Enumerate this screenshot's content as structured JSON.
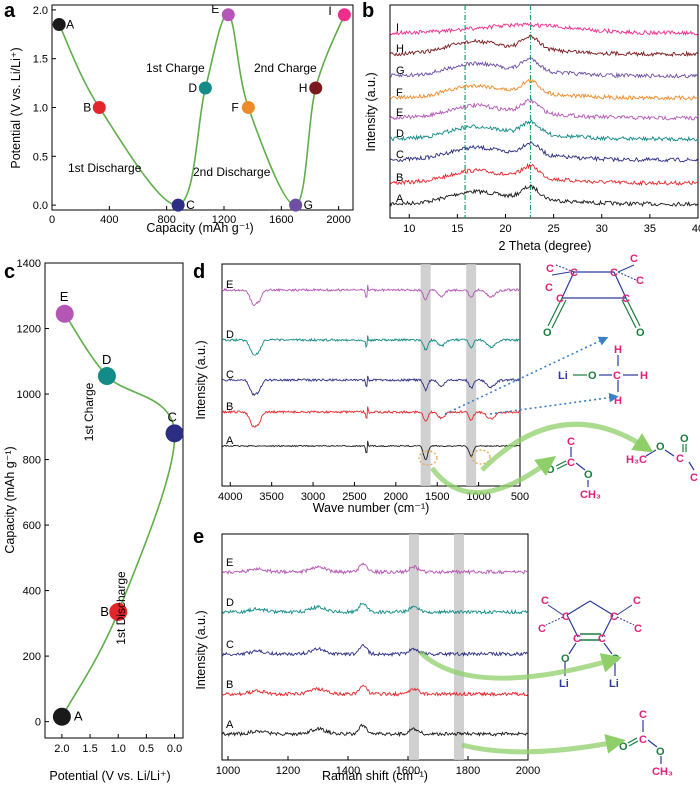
{
  "colors": {
    "A": "#1a1a1a",
    "B": "#e3262b",
    "C": "#2b2e83",
    "D": "#138b87",
    "E": "#b456b6",
    "F": "#ef8a2a",
    "G": "#6d4fa3",
    "H": "#7a1a1c",
    "I": "#ee2d8d",
    "curve": "#5fae4a",
    "chem": "#e0217a",
    "chem_bond": "#1b7d3e",
    "atom_blue": "#2a3a9a",
    "shade": "#c8c8c8",
    "dash": "#1d9a63",
    "dotted_arrow": "#3b7fc6",
    "green_arrow": "#8fcf6a"
  },
  "chart_data": [
    {
      "panel": "a",
      "type": "line",
      "xlabel": "Capacity (mAh g⁻¹)",
      "ylabel": "Potential (V vs. Li/Li⁺)",
      "xlim": [
        0,
        2100
      ],
      "ylim": [
        -0.05,
        2.05
      ],
      "xticks": [
        "0",
        "400",
        "800",
        "1200",
        "1600",
        "2000"
      ],
      "yticks": [
        "0.0",
        "0.5",
        "1.0",
        "1.5",
        "2.0"
      ],
      "points": [
        {
          "label": "A",
          "x": 50,
          "y": 1.85
        },
        {
          "label": "B",
          "x": 330,
          "y": 1.0
        },
        {
          "label": "C",
          "x": 880,
          "y": 0.0
        },
        {
          "label": "D",
          "x": 1070,
          "y": 1.2
        },
        {
          "label": "E",
          "x": 1230,
          "y": 1.95
        },
        {
          "label": "F",
          "x": 1370,
          "y": 1.0
        },
        {
          "label": "G",
          "x": 1700,
          "y": 0.0
        },
        {
          "label": "H",
          "x": 1840,
          "y": 1.2
        },
        {
          "label": "I",
          "x": 2040,
          "y": 1.95
        }
      ],
      "annotations": [
        "1st Discharge",
        "1st Charge",
        "2nd Discharge",
        "2nd Charge"
      ]
    },
    {
      "panel": "b",
      "type": "line",
      "xlabel": "2 Theta (degree)",
      "ylabel": "Intensity (a.u.)",
      "xlim": [
        8,
        40
      ],
      "xticks": [
        "10",
        "15",
        "20",
        "25",
        "30",
        "35",
        "40"
      ],
      "series": [
        "A",
        "B",
        "C",
        "D",
        "E",
        "F",
        "G",
        "H",
        "I"
      ],
      "reference_lines": [
        15.8,
        22.6
      ]
    },
    {
      "panel": "c",
      "type": "line",
      "xlabel": "Potential (V vs. Li/Li⁺)",
      "ylabel": "Capacity (mAh g⁻¹)",
      "xlim": [
        2.3,
        -0.15
      ],
      "ylim": [
        -50,
        1400
      ],
      "xticks": [
        "2.0",
        "1.5",
        "1.0",
        "0.5",
        "0.0"
      ],
      "yticks": [
        "0",
        "200",
        "400",
        "600",
        "800",
        "1000",
        "1200",
        "1400"
      ],
      "points": [
        {
          "label": "A",
          "x": 2.0,
          "y": 15
        },
        {
          "label": "B",
          "x": 1.0,
          "y": 335
        },
        {
          "label": "C",
          "x": 0.0,
          "y": 880
        },
        {
          "label": "D",
          "x": 1.2,
          "y": 1055
        },
        {
          "label": "E",
          "x": 1.95,
          "y": 1245
        }
      ],
      "annotations": [
        "1st Discharge",
        "1st Charge"
      ]
    },
    {
      "panel": "d",
      "type": "line",
      "xlabel": "Wave number (cm⁻¹)",
      "ylabel": "Intensity (a.u.)",
      "xlim": [
        4100,
        500
      ],
      "xticks": [
        "4000",
        "3500",
        "3000",
        "2500",
        "2000",
        "1500",
        "1000",
        "500"
      ],
      "series": [
        "A",
        "B",
        "C",
        "D",
        "E"
      ],
      "shaded_bands": [
        1640,
        1090
      ]
    },
    {
      "panel": "e",
      "type": "line",
      "xlabel": "Raman shift (cm⁻¹)",
      "ylabel": "Intensity (a.u.)",
      "xlim": [
        980,
        2000
      ],
      "xticks": [
        "1000",
        "1200",
        "1400",
        "1600",
        "1800",
        "2000"
      ],
      "series": [
        "A",
        "B",
        "C",
        "D",
        "E"
      ],
      "shaded_bands": [
        1620,
        1770
      ]
    }
  ],
  "panel_letters": {
    "a": "a",
    "b": "b",
    "c": "c",
    "d": "d",
    "e": "e"
  },
  "text": {
    "a_xlabel": "Capacity (mAh g⁻¹)",
    "a_ylabel": "Potential (V vs. Li/Li⁺)",
    "a_dis1": "1st Discharge",
    "a_ch1": "1st Charge",
    "a_dis2": "2nd Discharge",
    "a_ch2": "2nd Charge",
    "b_xlabel": "2 Theta (degree)",
    "b_ylabel": "Intensity (a.u.)",
    "c_xlabel": "Potential (V vs. Li/Li⁺)",
    "c_ylabel": "Capacity (mAh g⁻¹)",
    "c_ch1": "1st Charge",
    "c_dis1": "1st Discharge",
    "d_xlabel": "Wave number (cm⁻¹)",
    "d_ylabel": "Intensity (a.u.)",
    "e_xlabel": "Raman shift (cm⁻¹)",
    "e_ylabel": "Intensity (a.u.)"
  },
  "chem": {
    "C": "C",
    "O": "O",
    "Li": "Li",
    "H": "H",
    "CH3": "CH₃",
    "H3C": "H₃C"
  }
}
